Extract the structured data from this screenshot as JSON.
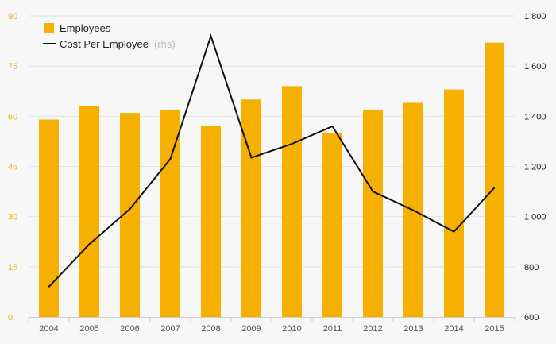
{
  "chart_data": {
    "type": "bar",
    "categories": [
      "2004",
      "2005",
      "2006",
      "2007",
      "2008",
      "2009",
      "2010",
      "2011",
      "2012",
      "2013",
      "2014",
      "2015"
    ],
    "series": [
      {
        "name": "Employees",
        "type": "bar",
        "axis": "left",
        "color": "#f5b000",
        "values": [
          59,
          63,
          61,
          62,
          57,
          65,
          69,
          55,
          62,
          64,
          68,
          82
        ]
      },
      {
        "name": "Cost Per Employee",
        "name_suffix": "(rhs)",
        "type": "line",
        "axis": "right",
        "color": "#111111",
        "values": [
          720,
          890,
          1030,
          1230,
          1720,
          1235,
          1290,
          1360,
          1100,
          1025,
          940,
          1115
        ]
      }
    ],
    "yleft": {
      "lim": [
        0,
        90
      ],
      "ticks": [
        0,
        15,
        30,
        45,
        60,
        75,
        90
      ],
      "tick_labels": [
        "0",
        "15",
        "30",
        "45",
        "60",
        "75",
        "90"
      ],
      "color": "#f0b400"
    },
    "yright": {
      "lim": [
        600,
        1800
      ],
      "ticks": [
        600,
        800,
        1000,
        1200,
        1400,
        1600,
        1800
      ],
      "tick_labels": [
        "600",
        "800",
        "1 000",
        "1 200",
        "1 400",
        "1 600",
        "1 800"
      ]
    },
    "grid": true,
    "legend": "top-left"
  }
}
